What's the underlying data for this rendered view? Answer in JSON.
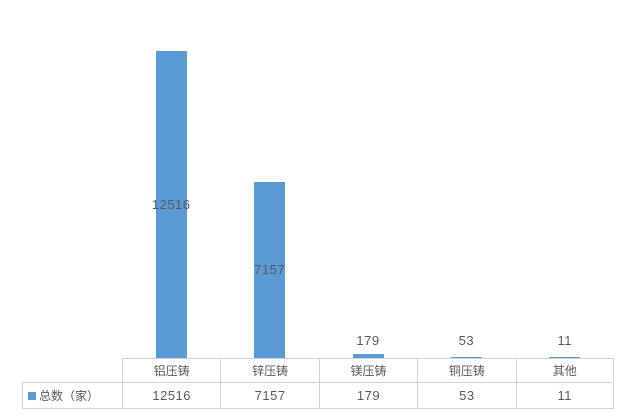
{
  "chart": {
    "legend_label": "总数（家）",
    "colors": {
      "bar": "#5B9BD5",
      "text": "#595959",
      "table_border": "#D2D2D2",
      "background": "#FFFFFF"
    }
  },
  "chart_data": {
    "type": "bar",
    "title": "",
    "xlabel": "",
    "ylabel": "",
    "categories": [
      "铝压铸",
      "锌压铸",
      "镁压铸",
      "铜压铸",
      "其他"
    ],
    "series": [
      {
        "name": "总数（家）",
        "values": [
          12516,
          7157,
          179,
          53,
          11
        ]
      }
    ],
    "data_labels": [
      "12516",
      "7157",
      "179",
      "53",
      "11"
    ],
    "ylim": [
      0,
      12600
    ],
    "grid": false,
    "axes_shown": false,
    "legend_position": "bottom-left-in-data-table",
    "data_table_shown": true
  }
}
